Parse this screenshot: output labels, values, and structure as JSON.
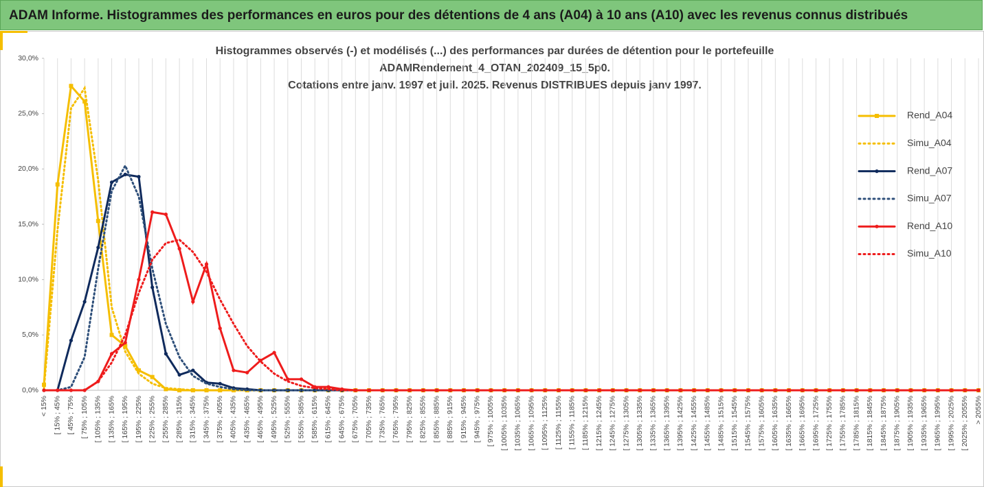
{
  "header": {
    "title": "ADAM Informe. Histogrammes des performances en euros pour des détentions de 4 ans (A04) à 10 ans (A10) avec les revenus connus distribués"
  },
  "chart_data": {
    "type": "line",
    "title": [
      "Histogrammes observés (-) et modélisés (...) des performances par durées de détention pour le portefeuille",
      "ADAMRendement_4_OTAN_202409_15_5p0.",
      "Cotations entre janv. 1997 et juil. 2025. Revenus DISTRIBUES depuis janv 1997."
    ],
    "categories": [
      "< 15%",
      "[ 15% ; 45%",
      "[ 45% ; 75%",
      "[ 75% ; 105%",
      "[ 105% ; 135%",
      "[ 135% ; 165%",
      "[ 165% ; 195%",
      "[ 195% ; 225%",
      "[ 225% ; 255%",
      "[ 255% ; 285%",
      "[ 285% ; 315%",
      "[ 315% ; 345%",
      "[ 345% ; 375%",
      "[ 375% ; 405%",
      "[ 405% ; 435%",
      "[ 435% ; 465%",
      "[ 465% ; 495%",
      "[ 495% ; 525%",
      "[ 525% ; 555%",
      "[ 555% ; 585%",
      "[ 585% ; 615%",
      "[ 615% ; 645%",
      "[ 645% ; 675%",
      "[ 675% ; 705%",
      "[ 705% ; 735%",
      "[ 735% ; 765%",
      "[ 765% ; 795%",
      "[ 795% ; 825%",
      "[ 825% ; 855%",
      "[ 855% ; 885%",
      "[ 885% ; 915%",
      "[ 915% ; 945%",
      "[ 945% ; 975%",
      "[ 975% ; 1005%",
      "[ 1005% ; 1035%",
      "[ 1035% ; 1065%",
      "[ 1065% ; 1095%",
      "[ 1095% ; 1125%",
      "[ 1125% ; 1155%",
      "[ 1155% ; 1185%",
      "[ 1185% ; 1215%",
      "[ 1215% ; 1245%",
      "[ 1245% ; 1275%",
      "[ 1275% ; 1305%",
      "[ 1305% ; 1335%",
      "[ 1335% ; 1365%",
      "[ 1365% ; 1395%",
      "[ 1395% ; 1425%",
      "[ 1425% ; 1455%",
      "[ 1455% ; 1485%",
      "[ 1485% ; 1515%",
      "[ 1515% ; 1545%",
      "[ 1545% ; 1575%",
      "[ 1575% ; 1605%",
      "[ 1605% ; 1635%",
      "[ 1635% ; 1665%",
      "[ 1665% ; 1695%",
      "[ 1695% ; 1725%",
      "[ 1725% ; 1755%",
      "[ 1755% ; 1785%",
      "[ 1785% ; 1815%",
      "[ 1815% ; 1845%",
      "[ 1845% ; 1875%",
      "[ 1875% ; 1905%",
      "[ 1905% ; 1935%",
      "[ 1935% ; 1965%",
      "[ 1965% ; 1995%",
      "[ 1995% ; 2025%",
      "[ 2025% ; 2055%",
      "> 2055%"
    ],
    "series": [
      {
        "name": "Rend_A04",
        "color": "#f5be00",
        "style": "solid",
        "marker": "square",
        "values": [
          0.5,
          18.6,
          27.5,
          26.1,
          15.3,
          5.0,
          4.0,
          1.8,
          1.2,
          0.1,
          0,
          0,
          0,
          0,
          0,
          0,
          0,
          0,
          0,
          0,
          0,
          0,
          0,
          0,
          0,
          0,
          0,
          0,
          0,
          0,
          0,
          0,
          0,
          0,
          0,
          0,
          0,
          0,
          0,
          0,
          0,
          0,
          0,
          0,
          0,
          0,
          0,
          0,
          0,
          0,
          0,
          0,
          0,
          0,
          0,
          0,
          0,
          0,
          0,
          0,
          0,
          0,
          0,
          0,
          0,
          0,
          0,
          0,
          0,
          0
        ]
      },
      {
        "name": "Simu_A04",
        "color": "#f5be00",
        "style": "dotted",
        "marker": "none",
        "values": [
          0.2,
          14.5,
          25.5,
          27.3,
          19,
          7.5,
          3.5,
          1.5,
          0.6,
          0.2,
          0.1,
          0,
          0,
          0,
          0,
          0,
          0,
          0,
          0,
          0,
          0,
          0,
          0,
          0,
          0,
          0,
          0,
          0,
          0,
          0,
          0,
          0,
          0,
          0,
          0,
          0,
          0,
          0,
          0,
          0,
          0,
          0,
          0,
          0,
          0,
          0,
          0,
          0,
          0,
          0,
          0,
          0,
          0,
          0,
          0,
          0,
          0,
          0,
          0,
          0,
          0,
          0,
          0,
          0,
          0,
          0,
          0,
          0,
          0,
          0
        ]
      },
      {
        "name": "Rend_A07",
        "color": "#0f2a5c",
        "style": "solid",
        "marker": "circle",
        "values": [
          0,
          0,
          4.5,
          8.0,
          12.9,
          18.8,
          19.5,
          19.3,
          9.3,
          3.3,
          1.4,
          1.8,
          0.7,
          0.6,
          0.2,
          0.1,
          0,
          0,
          0,
          0,
          0,
          0,
          0,
          0,
          0,
          0,
          0,
          0,
          0,
          0,
          0,
          0,
          0,
          0,
          0,
          0,
          0,
          0,
          0,
          0,
          0,
          0,
          0,
          0,
          0,
          0,
          0,
          0,
          0,
          0,
          0,
          0,
          0,
          0,
          0,
          0,
          0,
          0,
          0,
          0,
          0,
          0,
          0,
          0,
          0,
          0,
          0,
          0,
          0,
          0
        ]
      },
      {
        "name": "Simu_A07",
        "color": "#2e4f7a",
        "style": "dotted",
        "marker": "none",
        "values": [
          0,
          0,
          0.3,
          3,
          11,
          18,
          20.3,
          17.5,
          11,
          6,
          3,
          1.3,
          0.6,
          0.3,
          0.1,
          0,
          0,
          0,
          0,
          0,
          0,
          0,
          0,
          0,
          0,
          0,
          0,
          0,
          0,
          0,
          0,
          0,
          0,
          0,
          0,
          0,
          0,
          0,
          0,
          0,
          0,
          0,
          0,
          0,
          0,
          0,
          0,
          0,
          0,
          0,
          0,
          0,
          0,
          0,
          0,
          0,
          0,
          0,
          0,
          0,
          0,
          0,
          0,
          0,
          0,
          0,
          0,
          0,
          0,
          0
        ]
      },
      {
        "name": "Rend_A10",
        "color": "#ee1c1c",
        "style": "solid",
        "marker": "circle",
        "values": [
          0,
          0,
          0,
          0,
          0.8,
          3.3,
          4.3,
          10.0,
          16.1,
          15.9,
          12.8,
          8.0,
          11.4,
          5.6,
          1.8,
          1.6,
          2.7,
          3.4,
          1.0,
          1.0,
          0.3,
          0.3,
          0.1,
          0,
          0,
          0,
          0,
          0,
          0,
          0,
          0,
          0,
          0,
          0,
          0,
          0,
          0,
          0,
          0,
          0,
          0,
          0,
          0,
          0,
          0,
          0,
          0,
          0,
          0,
          0,
          0,
          0,
          0,
          0,
          0,
          0,
          0,
          0,
          0,
          0,
          0,
          0,
          0,
          0,
          0,
          0,
          0,
          0,
          0,
          0
        ]
      },
      {
        "name": "Simu_A10",
        "color": "#ee1c1c",
        "style": "dotted",
        "marker": "none",
        "values": [
          0,
          0,
          0,
          0,
          0.8,
          2.5,
          5,
          8.8,
          11.8,
          13.3,
          13.6,
          12.5,
          10.7,
          8.2,
          6,
          4,
          2.6,
          1.5,
          0.8,
          0.4,
          0.2,
          0.1,
          0,
          0,
          0,
          0,
          0,
          0,
          0,
          0,
          0,
          0,
          0,
          0,
          0,
          0,
          0,
          0,
          0,
          0,
          0,
          0,
          0,
          0,
          0,
          0,
          0,
          0,
          0,
          0,
          0,
          0,
          0,
          0,
          0,
          0,
          0,
          0,
          0,
          0,
          0,
          0,
          0,
          0,
          0,
          0,
          0,
          0,
          0,
          0
        ]
      }
    ],
    "ylim": [
      0,
      30
    ],
    "yticks": [
      {
        "value": 0,
        "label": "0,0%"
      },
      {
        "value": 5,
        "label": "5,0%"
      },
      {
        "value": 10,
        "label": "10,0%"
      },
      {
        "value": 15,
        "label": "15,0%"
      },
      {
        "value": 20,
        "label": "20,0%"
      },
      {
        "value": 25,
        "label": "25,0%"
      },
      {
        "value": 30,
        "label": "30,0%"
      }
    ],
    "grid": "vertical",
    "legend": "right"
  }
}
